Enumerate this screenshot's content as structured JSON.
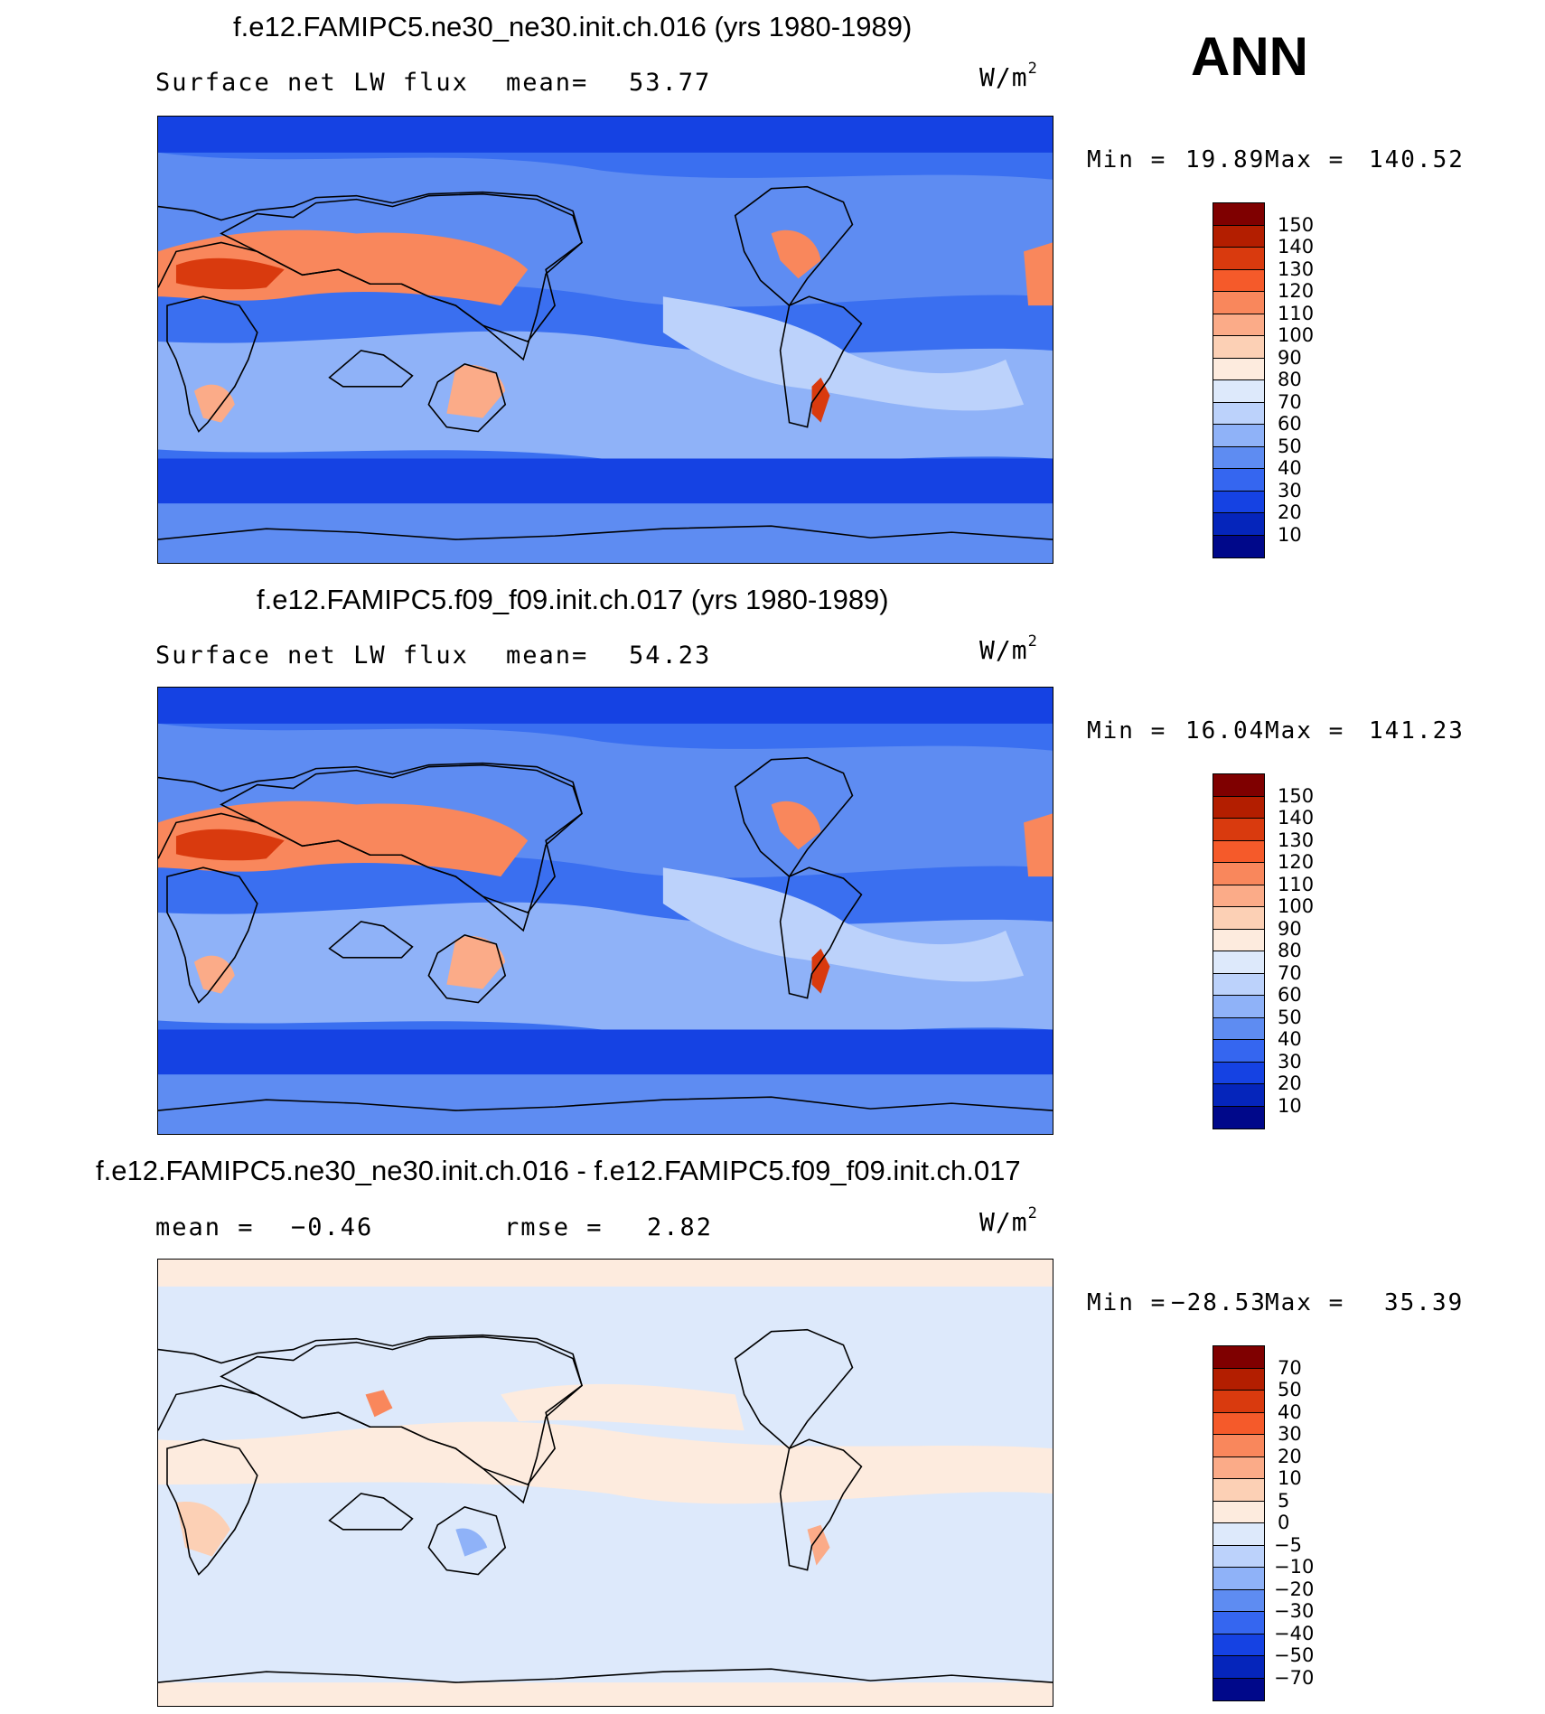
{
  "season_label": "ANN",
  "panels": [
    {
      "title": "f.e12.FAMIPC5.ne30_ne30.init.ch.016 (yrs 1980-1989)",
      "variable": "Surface net LW flux",
      "stat_label": "mean=",
      "stat_value": "53.77",
      "units": "W/m",
      "units_power": "2",
      "min_label": "Min =",
      "min_value": "19.89",
      "max_label": "Max =",
      "max_value": "140.52",
      "colorbar_labels": [
        "150",
        "140",
        "130",
        "120",
        "110",
        "100",
        "90",
        "80",
        "70",
        "60",
        "50",
        "40",
        "30",
        "20",
        "10"
      ],
      "colors": [
        "#7f0000",
        "#b31e00",
        "#d93a0e",
        "#f55a2a",
        "#f9875c",
        "#fbab88",
        "#fcd0b5",
        "#fdebde",
        "#dde9fb",
        "#bcd2fb",
        "#8fb2f8",
        "#5e8cf2",
        "#3566f0",
        "#1542e3",
        "#0525bb",
        "#00088a"
      ],
      "map_scheme": "absolute"
    },
    {
      "title": "f.e12.FAMIPC5.f09_f09.init.ch.017 (yrs 1980-1989)",
      "variable": "Surface net LW flux",
      "stat_label": "mean=",
      "stat_value": "54.23",
      "units": "W/m",
      "units_power": "2",
      "min_label": "Min =",
      "min_value": "16.04",
      "max_label": "Max =",
      "max_value": "141.23",
      "colorbar_labels": [
        "150",
        "140",
        "130",
        "120",
        "110",
        "100",
        "90",
        "80",
        "70",
        "60",
        "50",
        "40",
        "30",
        "20",
        "10"
      ],
      "colors": [
        "#7f0000",
        "#b31e00",
        "#d93a0e",
        "#f55a2a",
        "#f9875c",
        "#fbab88",
        "#fcd0b5",
        "#fdebde",
        "#dde9fb",
        "#bcd2fb",
        "#8fb2f8",
        "#5e8cf2",
        "#3566f0",
        "#1542e3",
        "#0525bb",
        "#00088a"
      ],
      "map_scheme": "absolute"
    },
    {
      "title": "f.e12.FAMIPC5.ne30_ne30.init.ch.016 - f.e12.FAMIPC5.f09_f09.init.ch.017",
      "variable": "mean =",
      "variable_value": "−0.46",
      "stat_label": "rmse =",
      "stat_value": "2.82",
      "units": "W/m",
      "units_power": "2",
      "min_label": "Min =",
      "min_value": "−28.53",
      "max_label": "Max =",
      "max_value": "35.39",
      "colorbar_labels": [
        "70",
        "50",
        "40",
        "30",
        "20",
        "10",
        "5",
        "0",
        "−5",
        "−10",
        "−20",
        "−30",
        "−40",
        "−50",
        "−70"
      ],
      "colors": [
        "#7f0000",
        "#b31e00",
        "#d93a0e",
        "#f55a2a",
        "#f9875c",
        "#fbab88",
        "#fcd0b5",
        "#fdebde",
        "#dde9fb",
        "#bcd2fb",
        "#8fb2f8",
        "#5e8cf2",
        "#3566f0",
        "#1542e3",
        "#0525bb",
        "#00088a"
      ],
      "map_scheme": "difference"
    }
  ]
}
